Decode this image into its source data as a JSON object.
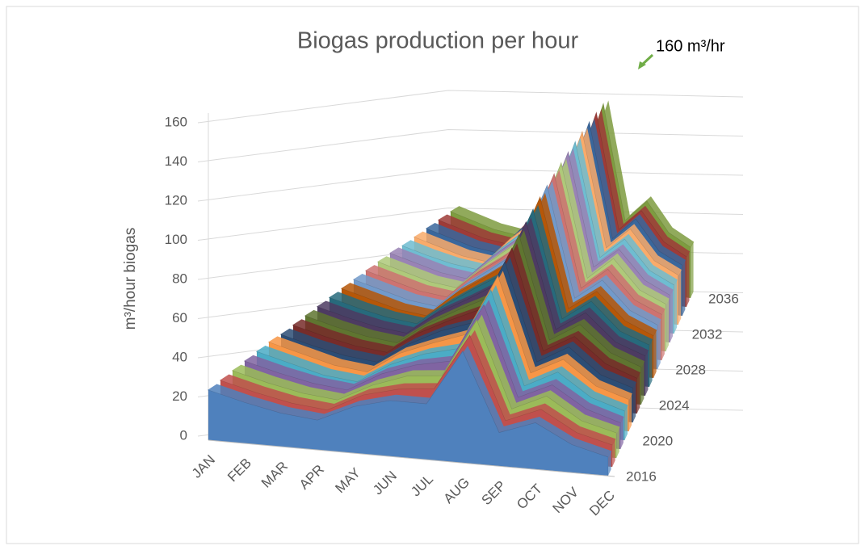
{
  "chart_data": {
    "type": "area3d",
    "title": "Biogas production per hour",
    "y_label": "m³/hour biogas",
    "annotation": "160 m³/hr",
    "categories": [
      "JAN",
      "FEB",
      "MAR",
      "APR",
      "MAY",
      "JUN",
      "JUL",
      "AUG",
      "SEP",
      "OCT",
      "NOV",
      "DEC"
    ],
    "z_categories": [
      "2016",
      null,
      null,
      null,
      "2020",
      null,
      null,
      null,
      "2024",
      null,
      null,
      null,
      "2028",
      null,
      null,
      null,
      "2032",
      null,
      null,
      null,
      "2036"
    ],
    "ylim": [
      0,
      160
    ],
    "yticks": [
      0,
      20,
      40,
      60,
      80,
      100,
      120,
      140,
      160
    ],
    "grid": true,
    "series": [
      {
        "color": "#4f81bd",
        "values": [
          27,
          22,
          18,
          16,
          25,
          30,
          30,
          60,
          18,
          25,
          15,
          10
        ]
      },
      {
        "color": "#c0504d",
        "values": [
          28,
          23,
          19,
          17,
          27,
          32,
          34,
          65,
          20,
          28,
          17,
          12
        ]
      },
      {
        "color": "#9bbb59",
        "values": [
          29,
          24,
          20,
          18,
          28,
          35,
          37,
          70,
          22,
          31,
          19,
          14
        ]
      },
      {
        "color": "#8064a2",
        "values": [
          30,
          25,
          21,
          19,
          30,
          37,
          41,
          75,
          24,
          33,
          21,
          15
        ]
      },
      {
        "color": "#4bacc6",
        "values": [
          31,
          26,
          21,
          19,
          31,
          39,
          44,
          80,
          26,
          36,
          23,
          17
        ]
      },
      {
        "color": "#f79646",
        "values": [
          32,
          27,
          22,
          20,
          33,
          41,
          48,
          85,
          29,
          39,
          25,
          19
        ]
      },
      {
        "color": "#2c4d75",
        "values": [
          32,
          27,
          23,
          21,
          34,
          44,
          51,
          90,
          31,
          42,
          27,
          21
        ]
      },
      {
        "color": "#772c2a",
        "values": [
          33,
          28,
          24,
          22,
          36,
          46,
          55,
          95,
          33,
          44,
          29,
          22
        ]
      },
      {
        "color": "#5f7530",
        "values": [
          34,
          29,
          25,
          23,
          37,
          48,
          58,
          100,
          35,
          47,
          31,
          24
        ]
      },
      {
        "color": "#4d3b62",
        "values": [
          35,
          30,
          26,
          24,
          39,
          50,
          62,
          105,
          37,
          50,
          33,
          26
        ]
      },
      {
        "color": "#276a7c",
        "values": [
          36,
          31,
          27,
          25,
          40,
          53,
          65,
          110,
          39,
          53,
          35,
          28
        ]
      },
      {
        "color": "#b65708",
        "values": [
          37,
          32,
          27,
          25,
          42,
          55,
          69,
          115,
          41,
          55,
          37,
          29
        ]
      },
      {
        "color": "#729aca",
        "values": [
          38,
          33,
          28,
          26,
          43,
          57,
          72,
          120,
          43,
          58,
          39,
          31
        ]
      },
      {
        "color": "#cd7371",
        "values": [
          39,
          34,
          29,
          27,
          45,
          59,
          76,
          125,
          45,
          61,
          41,
          33
        ]
      },
      {
        "color": "#afc97a",
        "values": [
          40,
          35,
          30,
          28,
          46,
          62,
          79,
          130,
          47,
          64,
          43,
          35
        ]
      },
      {
        "color": "#9983b5",
        "values": [
          41,
          36,
          31,
          29,
          48,
          64,
          83,
          135,
          50,
          66,
          45,
          36
        ]
      },
      {
        "color": "#6fbdd1",
        "values": [
          41,
          36,
          32,
          30,
          49,
          66,
          86,
          140,
          52,
          69,
          47,
          38
        ]
      },
      {
        "color": "#f9ab6b",
        "values": [
          42,
          37,
          32,
          30,
          51,
          68,
          90,
          145,
          54,
          72,
          49,
          40
        ]
      },
      {
        "color": "#3a679c",
        "values": [
          43,
          38,
          33,
          31,
          52,
          71,
          93,
          150,
          56,
          75,
          51,
          42
        ]
      },
      {
        "color": "#9e3b38",
        "values": [
          44,
          39,
          34,
          32,
          54,
          73,
          97,
          155,
          58,
          77,
          53,
          43
        ]
      },
      {
        "color": "#7e9c40",
        "values": [
          45,
          40,
          35,
          33,
          55,
          75,
          100,
          160,
          60,
          80,
          55,
          45
        ]
      }
    ]
  }
}
